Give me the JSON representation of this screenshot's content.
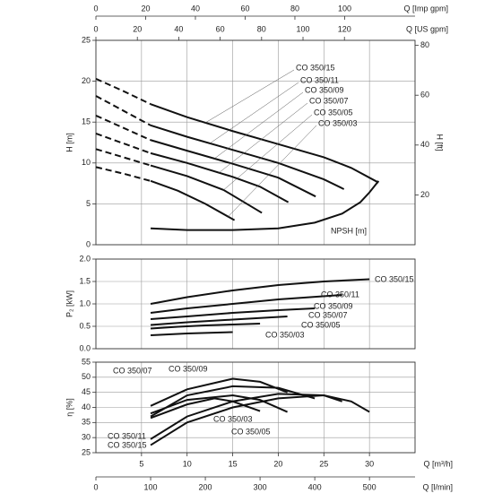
{
  "chart_data": [
    {
      "type": "line",
      "ylabel": "H [m]",
      "y2label": "H [ft]",
      "xlim": [
        0,
        35
      ],
      "ylim": [
        0,
        25
      ],
      "yticks": [
        0,
        5,
        10,
        15,
        20,
        25
      ],
      "y2lim": [
        0,
        82.02
      ],
      "y2ticks": [
        20,
        40,
        60,
        80
      ],
      "grid": true,
      "top_axes": [
        {
          "label": "Q [Imp gpm]",
          "lim": [
            0,
            128.3
          ],
          "ticks": [
            0,
            20,
            40,
            60,
            80,
            100
          ]
        },
        {
          "label": "Q [US gpm]",
          "lim": [
            0,
            154.1
          ],
          "ticks": [
            0,
            20,
            40,
            60,
            80,
            100,
            120
          ]
        }
      ],
      "series": [
        {
          "name": "CO 350/15",
          "color": "#111",
          "x_dashed": [
            0,
            3,
            6
          ],
          "values_dashed": [
            20.3,
            18.8,
            17.2
          ],
          "x": [
            6,
            10,
            15,
            20,
            25,
            28,
            31
          ],
          "values": [
            17.2,
            15.6,
            13.9,
            12.3,
            10.7,
            9.4,
            7.6
          ]
        },
        {
          "name": "CO 350/11",
          "color": "#111",
          "x_dashed": [
            0,
            3,
            6
          ],
          "values_dashed": [
            18.2,
            16.4,
            14.6
          ],
          "x": [
            6,
            10,
            15,
            20,
            25,
            27.2
          ],
          "values": [
            14.6,
            13.2,
            11.6,
            10.0,
            8.0,
            6.8
          ]
        },
        {
          "name": "CO 350/09",
          "color": "#111",
          "x_dashed": [
            0,
            3,
            6
          ],
          "values_dashed": [
            15.8,
            14.3,
            12.8
          ],
          "x": [
            6,
            10,
            15,
            20,
            24.1
          ],
          "values": [
            12.8,
            11.5,
            9.9,
            8.2,
            5.9
          ]
        },
        {
          "name": "CO 350/07",
          "color": "#111",
          "x_dashed": [
            0,
            3,
            6
          ],
          "values_dashed": [
            13.6,
            12.4,
            11.2
          ],
          "x": [
            6,
            10,
            15,
            18,
            21.1
          ],
          "values": [
            11.2,
            10.0,
            8.3,
            7.1,
            5.2
          ]
        },
        {
          "name": "CO 350/05",
          "color": "#111",
          "x_dashed": [
            0,
            3,
            6
          ],
          "values_dashed": [
            11.7,
            10.7,
            9.7
          ],
          "x": [
            6,
            10,
            14,
            18.2
          ],
          "values": [
            9.7,
            8.4,
            6.7,
            3.9
          ]
        },
        {
          "name": "CO 350/03",
          "color": "#111",
          "x_dashed": [
            0,
            3,
            6
          ],
          "values_dashed": [
            9.5,
            8.7,
            7.8
          ],
          "x": [
            6,
            9,
            12,
            15.2
          ],
          "values": [
            7.8,
            6.6,
            5.0,
            3.0
          ]
        },
        {
          "name": "NPSH [m]",
          "color": "#111",
          "x": [
            6,
            10,
            15,
            20,
            24,
            27,
            29,
            30,
            31
          ],
          "values": [
            2.0,
            1.8,
            1.8,
            2.0,
            2.7,
            3.8,
            5.2,
            6.4,
            7.8
          ]
        }
      ]
    },
    {
      "type": "line",
      "ylabel": "P₂ [kW]",
      "xlim": [
        0,
        35
      ],
      "ylim": [
        0,
        2
      ],
      "yticks": [
        {
          "value": 0,
          "label": "0.0"
        },
        0.5,
        {
          "value": 1,
          "label": "1.0"
        },
        1.5,
        {
          "value": 2,
          "label": "2.0"
        }
      ],
      "grid": true,
      "series": [
        {
          "name": "CO 350/15",
          "color": "#111",
          "x": [
            6,
            10,
            15,
            20,
            25,
            30
          ],
          "values": [
            1.0,
            1.15,
            1.3,
            1.42,
            1.5,
            1.55
          ]
        },
        {
          "name": "CO 350/11",
          "color": "#111",
          "x": [
            6,
            10,
            15,
            20,
            27
          ],
          "values": [
            0.8,
            0.9,
            1.0,
            1.1,
            1.2
          ]
        },
        {
          "name": "CO 350/09",
          "color": "#111",
          "x": [
            6,
            10,
            15,
            20,
            24
          ],
          "values": [
            0.66,
            0.72,
            0.8,
            0.86,
            0.9
          ]
        },
        {
          "name": "CO 350/07",
          "color": "#111",
          "x": [
            6,
            10,
            15,
            21
          ],
          "values": [
            0.53,
            0.59,
            0.65,
            0.72
          ]
        },
        {
          "name": "CO 350/05",
          "color": "#111",
          "x": [
            6,
            9,
            12,
            15,
            18
          ],
          "values": [
            0.45,
            0.49,
            0.52,
            0.54,
            0.56
          ]
        },
        {
          "name": "CO 350/03",
          "color": "#111",
          "x": [
            6,
            10,
            15
          ],
          "values": [
            0.3,
            0.34,
            0.37
          ]
        }
      ]
    },
    {
      "type": "line",
      "ylabel": "η [%]",
      "xlabel": "Q [m³/h]",
      "xlim": [
        0,
        35
      ],
      "xticks": [
        5,
        10,
        15,
        20,
        25,
        30
      ],
      "ylim": [
        25,
        55
      ],
      "yticks": [
        25,
        30,
        35,
        40,
        45,
        50,
        55
      ],
      "grid": true,
      "bottom_axes": [
        {
          "label": "Q [l/min]",
          "lim": [
            0,
            583.3
          ],
          "ticks": [
            0,
            100,
            200,
            300,
            400,
            500
          ]
        }
      ],
      "series": [
        {
          "name": "CO 350/15",
          "color": "#111",
          "x": [
            6,
            10,
            15,
            20,
            25,
            28,
            30
          ],
          "values": [
            27.5,
            35,
            40,
            43,
            44,
            42,
            38.5
          ]
        },
        {
          "name": "CO 350/11",
          "color": "#111",
          "x": [
            6,
            10,
            15,
            20,
            25,
            27
          ],
          "values": [
            29.5,
            37,
            42,
            44.5,
            44,
            42
          ]
        },
        {
          "name": "CO 350/09",
          "color": "#111",
          "x": [
            6,
            10,
            15,
            20,
            24
          ],
          "values": [
            37,
            44,
            47,
            46.5,
            43
          ]
        },
        {
          "name": "CO 350/07",
          "color": "#111",
          "x": [
            6,
            10,
            15,
            18,
            21
          ],
          "values": [
            40.5,
            46,
            49.5,
            48.5,
            45
          ]
        },
        {
          "name": "CO 350/05",
          "color": "#111",
          "x": [
            6,
            10,
            15,
            18,
            21
          ],
          "values": [
            38,
            42.5,
            44,
            42.5,
            38.5
          ]
        },
        {
          "name": "CO 350/03",
          "color": "#111",
          "x": [
            6,
            10,
            13,
            15,
            18
          ],
          "values": [
            36.5,
            41,
            43,
            42,
            38.8
          ]
        }
      ]
    }
  ]
}
